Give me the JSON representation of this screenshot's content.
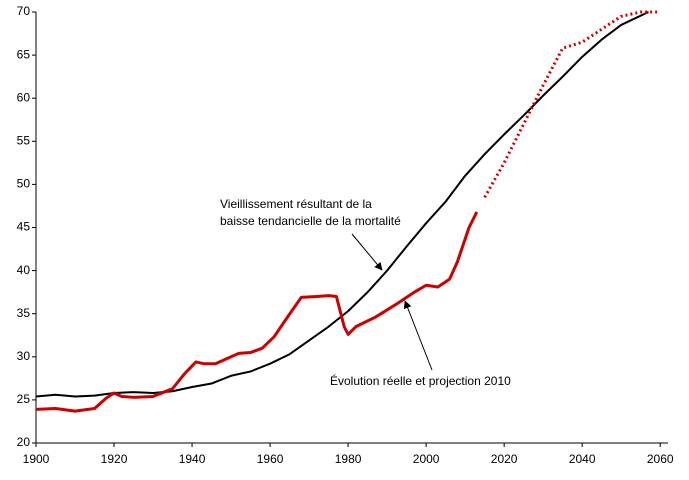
{
  "chart_data": {
    "type": "line",
    "xlim": [
      1900,
      2062
    ],
    "ylim": [
      20,
      70
    ],
    "xticks": [
      1900,
      1920,
      1940,
      1960,
      1980,
      2000,
      2020,
      2040,
      2060
    ],
    "yticks": [
      20,
      25,
      30,
      35,
      40,
      45,
      50,
      55,
      60,
      65,
      70
    ],
    "grid": false,
    "series": [
      {
        "color": "#000000",
        "style": "solid",
        "x": [
          1900,
          1905,
          1910,
          1915,
          1920,
          1925,
          1930,
          1935,
          1940,
          1945,
          1950,
          1955,
          1960,
          1965,
          1970,
          1975,
          1980,
          1985,
          1990,
          1995,
          2000,
          2005,
          2010,
          2015,
          2020,
          2025,
          2030,
          2035,
          2040,
          2045,
          2050,
          2057
        ],
        "values": [
          25.4,
          25.6,
          25.4,
          25.5,
          25.8,
          25.9,
          25.8,
          26.0,
          26.5,
          26.9,
          27.8,
          28.3,
          29.2,
          30.3,
          31.9,
          33.5,
          35.3,
          37.5,
          40.0,
          42.8,
          45.5,
          48.0,
          51.0,
          53.5,
          55.8,
          58.0,
          60.3,
          62.5,
          64.8,
          66.8,
          68.5,
          70.0
        ]
      },
      {
        "color": "#cc0000",
        "style": "solid",
        "x": [
          1900,
          1905,
          1910,
          1915,
          1918,
          1920,
          1922,
          1925,
          1930,
          1935,
          1938,
          1941,
          1943,
          1946,
          1950,
          1952,
          1955,
          1958,
          1961,
          1964,
          1968,
          1972,
          1975,
          1977,
          1979,
          1980,
          1982,
          1987,
          1992,
          1997,
          2000,
          2003,
          2006,
          2008,
          2011,
          2013
        ],
        "values": [
          23.9,
          24.0,
          23.7,
          24.0,
          25.2,
          25.8,
          25.4,
          25.3,
          25.4,
          26.3,
          28.0,
          29.4,
          29.2,
          29.2,
          30.0,
          30.4,
          30.5,
          31.0,
          32.3,
          34.3,
          36.9,
          37.0,
          37.1,
          37.0,
          33.5,
          32.6,
          33.5,
          34.6,
          36.0,
          37.5,
          38.3,
          38.1,
          39.0,
          41.0,
          45.0,
          46.8
        ]
      },
      {
        "color": "#cc0000",
        "style": "dotted",
        "x": [
          2015,
          2020,
          2025,
          2030,
          2035,
          2040,
          2045,
          2050,
          2055,
          2060
        ],
        "values": [
          48.5,
          52.5,
          57.0,
          61.5,
          65.8,
          66.5,
          68.0,
          69.5,
          70.0,
          70.0
        ]
      }
    ],
    "annotations": [
      {
        "lines": [
          "Vieillissement résultant de la",
          "baisse tendancielle de la mortalité"
        ]
      },
      {
        "lines": [
          "Évolution réelle et projection 2010"
        ]
      }
    ]
  }
}
